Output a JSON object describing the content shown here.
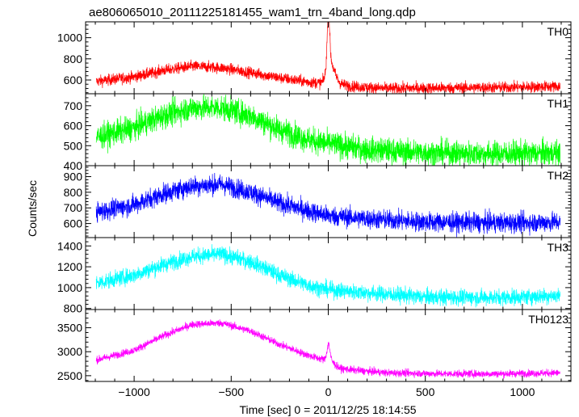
{
  "title": "ae806065010_20111225181455_wam1_trn_4band_long.qdp",
  "ylabel": "Counts/sec",
  "xlabel": "Time [sec] 0 = 2011/12/25 18:14:55",
  "chart_data": {
    "type": "line",
    "title": "ae806065010_20111225181455_wam1_trn_4band_long.qdp",
    "xlabel": "Time [sec] 0 = 2011/12/25 18:14:55",
    "ylabel": "Counts/sec",
    "xlim": [
      -1250,
      1250
    ],
    "xticks": [
      -1000,
      -500,
      0,
      500,
      1000
    ],
    "xticklabels": [
      "−1000",
      "−500",
      "0",
      "500",
      "1000"
    ],
    "panels": [
      {
        "name": "TH0",
        "color": "#ff0000",
        "ylim": [
          470,
          1150
        ],
        "yticks": [
          600,
          800,
          1000
        ],
        "yticklabels": [
          "600",
          "800",
          "1000"
        ],
        "noise": 38,
        "profile": [
          [
            -1200,
            585
          ],
          [
            -1000,
            630
          ],
          [
            -850,
            690
          ],
          [
            -700,
            730
          ],
          [
            -550,
            715
          ],
          [
            -400,
            670
          ],
          [
            -250,
            620
          ],
          [
            -100,
            580
          ],
          [
            -30,
            570
          ],
          [
            0,
            650
          ],
          [
            60,
            545
          ],
          [
            300,
            520
          ],
          [
            600,
            525
          ],
          [
            900,
            530
          ],
          [
            1190,
            540
          ]
        ],
        "flare": {
          "t": 0,
          "peak": 1130,
          "width": 6,
          "tail": 600,
          "decay": 25
        }
      },
      {
        "name": "TH1",
        "color": "#00ff00",
        "ylim": [
          400,
          760
        ],
        "yticks": [
          400,
          500,
          600,
          700
        ],
        "yticklabels": [
          "400",
          "500",
          "600",
          "700"
        ],
        "noise": 45,
        "profile": [
          [
            -1200,
            540
          ],
          [
            -1000,
            590
          ],
          [
            -850,
            650
          ],
          [
            -700,
            690
          ],
          [
            -550,
            690
          ],
          [
            -400,
            650
          ],
          [
            -250,
            580
          ],
          [
            -100,
            530
          ],
          [
            0,
            510
          ],
          [
            200,
            480
          ],
          [
            500,
            465
          ],
          [
            800,
            460
          ],
          [
            1000,
            460
          ],
          [
            1190,
            465
          ]
        ],
        "flare": null
      },
      {
        "name": "TH2",
        "color": "#0000ff",
        "ylim": [
          510,
          970
        ],
        "yticks": [
          600,
          700,
          800,
          900
        ],
        "yticklabels": [
          "600",
          "700",
          "800",
          "900"
        ],
        "noise": 45,
        "profile": [
          [
            -1200,
            670
          ],
          [
            -1000,
            720
          ],
          [
            -850,
            790
          ],
          [
            -700,
            840
          ],
          [
            -550,
            850
          ],
          [
            -400,
            800
          ],
          [
            -250,
            730
          ],
          [
            -100,
            680
          ],
          [
            0,
            650
          ],
          [
            200,
            630
          ],
          [
            500,
            610
          ],
          [
            800,
            605
          ],
          [
            1000,
            605
          ],
          [
            1190,
            610
          ]
        ],
        "flare": null
      },
      {
        "name": "TH3",
        "color": "#00ffff",
        "ylim": [
          790,
          1480
        ],
        "yticks": [
          800,
          1000,
          1200,
          1400
        ],
        "yticklabels": [
          "800",
          "1000",
          "1200",
          "1400"
        ],
        "noise": 55,
        "profile": [
          [
            -1200,
            1040
          ],
          [
            -1000,
            1120
          ],
          [
            -850,
            1220
          ],
          [
            -700,
            1300
          ],
          [
            -550,
            1320
          ],
          [
            -400,
            1250
          ],
          [
            -250,
            1120
          ],
          [
            -100,
            1020
          ],
          [
            0,
            980
          ],
          [
            200,
            950
          ],
          [
            500,
            910
          ],
          [
            800,
            905
          ],
          [
            1000,
            910
          ],
          [
            1190,
            925
          ]
        ],
        "flare": null
      },
      {
        "name": "TH0123",
        "color": "#ff00ff",
        "ylim": [
          2380,
          3880
        ],
        "yticks": [
          2500,
          3000,
          3500
        ],
        "yticklabels": [
          "2500",
          "3000",
          "3500"
        ],
        "noise": 55,
        "profile": [
          [
            -1200,
            2820
          ],
          [
            -1000,
            3030
          ],
          [
            -850,
            3330
          ],
          [
            -700,
            3570
          ],
          [
            -550,
            3600
          ],
          [
            -400,
            3430
          ],
          [
            -250,
            3150
          ],
          [
            -100,
            2920
          ],
          [
            -30,
            2840
          ],
          [
            60,
            2640
          ],
          [
            300,
            2560
          ],
          [
            600,
            2540
          ],
          [
            900,
            2540
          ],
          [
            1190,
            2560
          ]
        ],
        "flare": {
          "t": 0,
          "peak": 3120,
          "width": 8,
          "tail": 260,
          "decay": 28
        }
      }
    ]
  }
}
